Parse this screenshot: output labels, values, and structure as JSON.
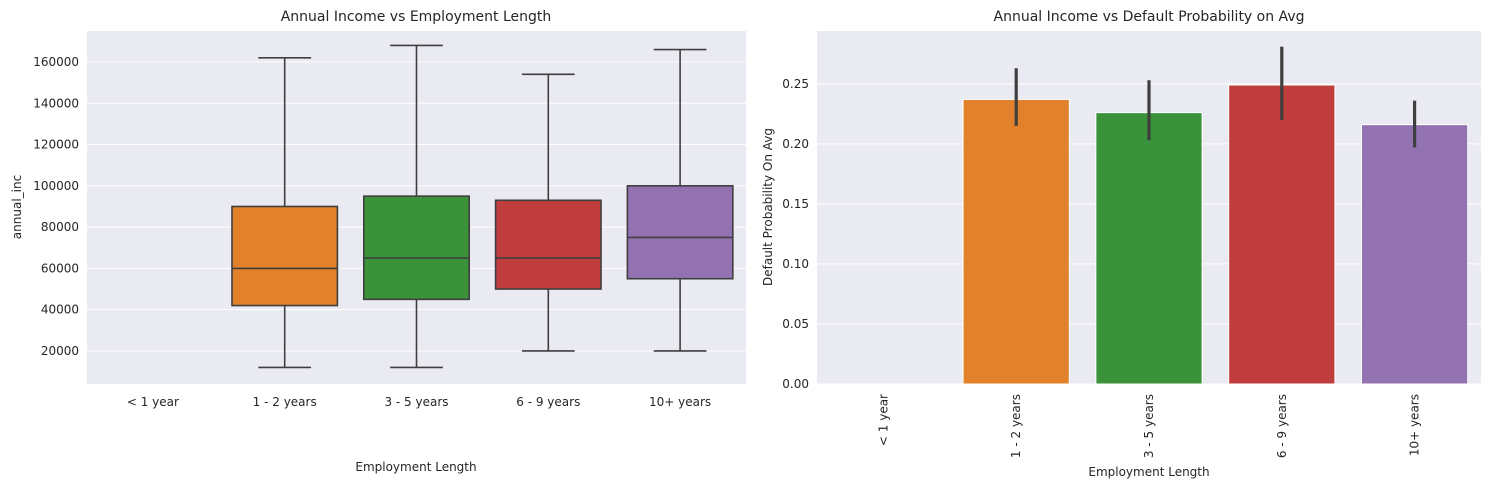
{
  "chart_data": [
    {
      "type": "box",
      "title": "Annual Income vs Employment Length",
      "xlabel": "Employment Length",
      "ylabel": "annual_inc",
      "categories": [
        "< 1 year",
        "1 - 2 years",
        "3 - 5 years",
        "6 - 9 years",
        "10+ years"
      ],
      "ylim": [
        4000,
        175000
      ],
      "yticks": [
        20000,
        40000,
        60000,
        80000,
        100000,
        120000,
        140000,
        160000
      ],
      "grid": true,
      "boxes": [
        null,
        {
          "whisker_low": 12000,
          "q1": 42000,
          "median": 60000,
          "q3": 90000,
          "whisker_high": 162000,
          "color": "#e1812c"
        },
        {
          "whisker_low": 12000,
          "q1": 45000,
          "median": 65000,
          "q3": 95000,
          "whisker_high": 168000,
          "color": "#3a923a"
        },
        {
          "whisker_low": 20000,
          "q1": 50000,
          "median": 65000,
          "q3": 93000,
          "whisker_high": 154000,
          "color": "#c03d3e"
        },
        {
          "whisker_low": 20000,
          "q1": 55000,
          "median": 75000,
          "q3": 100000,
          "whisker_high": 166000,
          "color": "#9372b2"
        }
      ]
    },
    {
      "type": "bar",
      "title": "Annual Income vs Default Probability on Avg",
      "xlabel": "Employment Length",
      "ylabel": "Default Probability On Avg",
      "categories": [
        "< 1 year",
        "1 - 2 years",
        "3 - 5 years",
        "6 - 9 years",
        "10+ years"
      ],
      "values": [
        0.0,
        0.237,
        0.226,
        0.249,
        0.216
      ],
      "ci_low": [
        null,
        0.215,
        0.203,
        0.22,
        0.197
      ],
      "ci_high": [
        null,
        0.263,
        0.253,
        0.281,
        0.236
      ],
      "colors": [
        "#3274a1",
        "#e1812c",
        "#3a923a",
        "#c03d3e",
        "#9372b2"
      ],
      "ylim": [
        0,
        0.294
      ],
      "yticks": [
        "0.00",
        "0.05",
        "0.10",
        "0.15",
        "0.20",
        "0.25"
      ],
      "xtick_rotation": 90,
      "grid": true
    }
  ]
}
